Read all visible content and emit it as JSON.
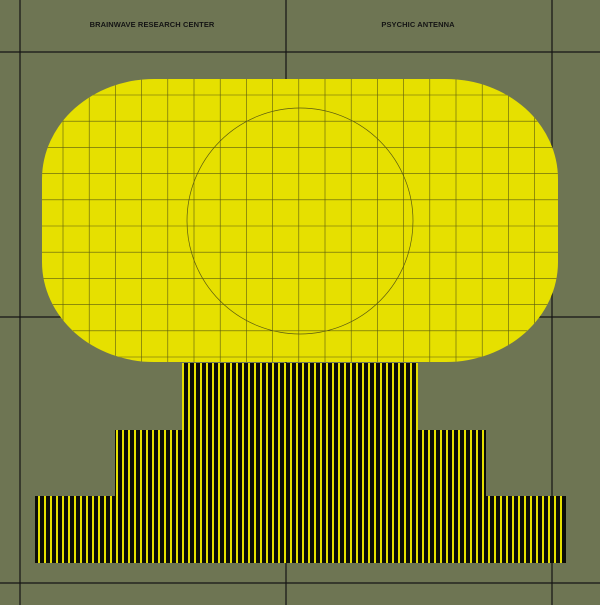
{
  "header": {
    "left_text": "BRAINWAVE RESEARCH CENTER",
    "right_text": "PSYCHIC ANTENNA"
  },
  "colors": {
    "background": "#6e7553",
    "yellow": "#e6e000",
    "line": "#141414"
  }
}
